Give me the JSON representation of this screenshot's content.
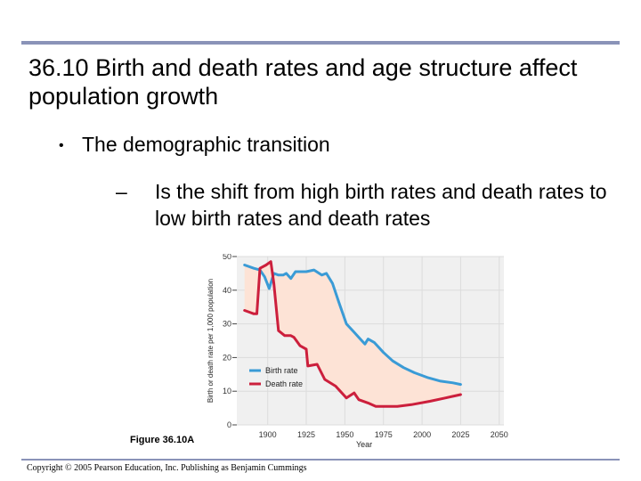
{
  "slide": {
    "title": "36.10 Birth and death rates and age structure affect population growth",
    "bullet": "The demographic transition",
    "bullet_marker": "•",
    "sub_dash": "–",
    "sub_bullet": "Is the shift from high birth rates and death rates to low birth rates and death rates",
    "figure_label": "Figure 36.10A",
    "copyright": "Copyright © 2005 Pearson Education, Inc. Publishing as Benjamin Cummings"
  },
  "colors": {
    "rule": "#8a93b8",
    "birth": "#3a9bd6",
    "death": "#cc1f3c",
    "fill": "#fde3d6",
    "plot_bg": "#f0f0f0"
  },
  "chart_data": {
    "type": "line",
    "title": "",
    "xlabel": "Year",
    "ylabel": "Birth or death rate per 1,000 population",
    "xlim": [
      1880,
      2053
    ],
    "ylim": [
      0,
      50
    ],
    "xticks": [
      1900,
      1925,
      1950,
      1975,
      2000,
      2025,
      2050
    ],
    "yticks": [
      0,
      10,
      20,
      30,
      40,
      50
    ],
    "legend_position": "lower-left inside plot",
    "fill_between": true,
    "series": [
      {
        "name": "Birth rate",
        "color": "#3a9bd6",
        "points": [
          [
            1885,
            47.5
          ],
          [
            1891,
            46.5
          ],
          [
            1895,
            46
          ],
          [
            1898,
            44
          ],
          [
            1901,
            40.5
          ],
          [
            1904,
            45
          ],
          [
            1907,
            44.5
          ],
          [
            1910,
            44.5
          ],
          [
            1912,
            45
          ],
          [
            1915,
            43.5
          ],
          [
            1918,
            45.5
          ],
          [
            1925,
            45.5
          ],
          [
            1930,
            46
          ],
          [
            1935,
            44.5
          ],
          [
            1938,
            45
          ],
          [
            1942,
            42
          ],
          [
            1946,
            36.5
          ],
          [
            1951,
            30
          ],
          [
            1956,
            27.5
          ],
          [
            1960,
            25.5
          ],
          [
            1963,
            24
          ],
          [
            1965,
            25.5
          ],
          [
            1969,
            24.5
          ],
          [
            1975,
            21.5
          ],
          [
            1981,
            19
          ],
          [
            1988,
            17
          ],
          [
            1995,
            15.5
          ],
          [
            2004,
            14
          ],
          [
            2012,
            13
          ],
          [
            2020,
            12.5
          ],
          [
            2025,
            12
          ]
        ]
      },
      {
        "name": "Death rate",
        "color": "#cc1f3c",
        "points": [
          [
            1885,
            34
          ],
          [
            1888,
            33.5
          ],
          [
            1891,
            33
          ],
          [
            1893,
            33
          ],
          [
            1895,
            46.5
          ],
          [
            1899,
            47.5
          ],
          [
            1902,
            48.5
          ],
          [
            1904,
            42
          ],
          [
            1907,
            28
          ],
          [
            1911,
            26.5
          ],
          [
            1915,
            26.5
          ],
          [
            1917,
            26
          ],
          [
            1921,
            23.5
          ],
          [
            1925,
            22.5
          ],
          [
            1926,
            17.5
          ],
          [
            1932,
            18
          ],
          [
            1937,
            13.5
          ],
          [
            1944,
            11.5
          ],
          [
            1951,
            8
          ],
          [
            1956,
            9.5
          ],
          [
            1959,
            7.5
          ],
          [
            1965,
            6.5
          ],
          [
            1970,
            5.5
          ],
          [
            1975,
            5.5
          ],
          [
            1984,
            5.5
          ],
          [
            1993,
            6
          ],
          [
            2005,
            7
          ],
          [
            2015,
            8
          ],
          [
            2025,
            9
          ]
        ]
      }
    ]
  }
}
